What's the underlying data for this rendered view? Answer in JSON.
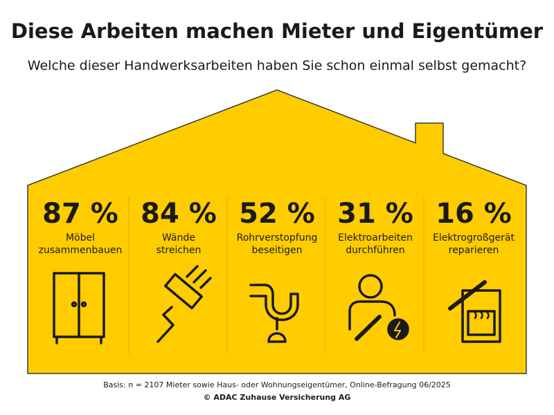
{
  "chart_data": {
    "type": "stat-tiles",
    "title": "Diese Arbeiten machen Mieter und Eigentümer",
    "subtitle": "Welche dieser Handwerksarbeiten haben Sie schon einmal selbst gemacht?",
    "categories": [
      "Möbel\nzusammenbauen",
      "Wände\nstreichen",
      "Rohrverstopfung\nbeseitigen",
      "Elektroarbeiten\ndurchführen",
      "Elektrogroßgerät\nreparieren"
    ],
    "values": [
      87,
      84,
      52,
      31,
      16
    ],
    "value_labels": [
      "87 %",
      "84 %",
      "52 %",
      "31 %",
      "16 %"
    ],
    "color": "#ffcc00",
    "footnote": "Basis: n = 2107 Mieter sowie Haus- oder Wohnungseigentümer, Online-Befragung 06/2025",
    "source": "© ADAC Zuhause Versicherung AG"
  }
}
